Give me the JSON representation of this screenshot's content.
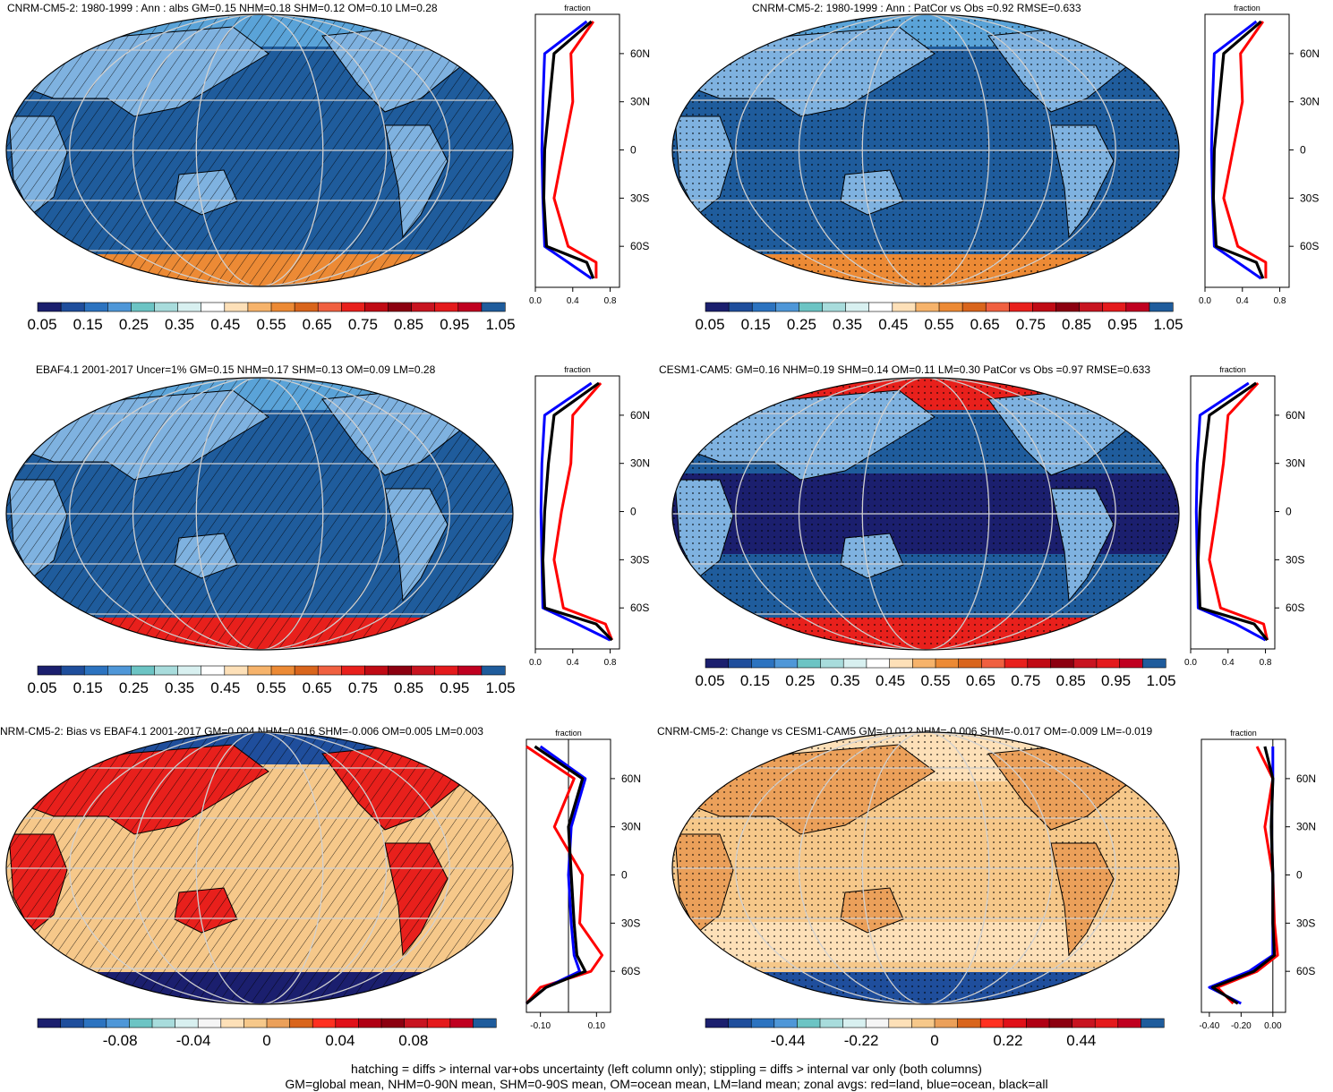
{
  "panels": [
    {
      "id": "p1",
      "title": "CNRM-CM5-2: 1980-1999 : Ann : albs GM=0.15 NHM=0.18 SHM=0.12 OM=0.10 LM=0.28",
      "map_pattern": "hatch",
      "profile_xlabel": "fraction",
      "profile_ticks": [
        "0.0",
        "0.4",
        "0.8"
      ],
      "lat_ticks": [
        "60N",
        "30N",
        "0",
        "30S",
        "60S"
      ],
      "colorbar_labels": [
        "0.05",
        "0.15",
        "0.25",
        "0.35",
        "0.45",
        "0.55",
        "0.65",
        "0.75",
        "0.85",
        "0.95",
        "1.05"
      ]
    },
    {
      "id": "p2",
      "title": "CNRM-CM5-2: 1980-1999 : Ann : PatCor vs Obs =0.92 RMSE=0.633",
      "map_pattern": "stipple",
      "profile_xlabel": "fraction",
      "profile_ticks": [
        "0.0",
        "0.4",
        "0.8"
      ],
      "lat_ticks": [
        "60N",
        "30N",
        "0",
        "30S",
        "60S"
      ],
      "colorbar_labels": [
        "0.05",
        "0.15",
        "0.25",
        "0.35",
        "0.45",
        "0.55",
        "0.65",
        "0.75",
        "0.85",
        "0.95",
        "1.05"
      ]
    },
    {
      "id": "p3",
      "title": "EBAF4.1 2001-2017 Uncer=1% GM=0.15 NHM=0.17 SHM=0.13 OM=0.09 LM=0.28",
      "map_pattern": "hatch",
      "profile_xlabel": "fraction",
      "profile_ticks": [
        "0.0",
        "0.4",
        "0.8"
      ],
      "lat_ticks": [
        "60N",
        "30N",
        "0",
        "30S",
        "60S"
      ],
      "colorbar_labels": [
        "0.05",
        "0.15",
        "0.25",
        "0.35",
        "0.45",
        "0.55",
        "0.65",
        "0.75",
        "0.85",
        "0.95",
        "1.05"
      ]
    },
    {
      "id": "p4",
      "title": "CESM1-CAM5: GM=0.16 NHM=0.19 SHM=0.14 OM=0.11 LM=0.30 PatCor vs Obs =0.97 RMSE=0.633",
      "map_pattern": "stipple",
      "profile_xlabel": "fraction",
      "profile_ticks": [
        "0.0",
        "0.4",
        "0.8"
      ],
      "lat_ticks": [
        "60N",
        "30N",
        "0",
        "30S",
        "60S"
      ],
      "colorbar_labels": [
        "0.05",
        "0.15",
        "0.25",
        "0.35",
        "0.45",
        "0.55",
        "0.65",
        "0.75",
        "0.85",
        "0.95",
        "1.05"
      ]
    },
    {
      "id": "p5",
      "title": "NRM-CM5-2: Bias vs EBAF4.1 2001-2017 GM=0.004 NHM=0.016 SHM=-0.006 OM=0.005 LM=0.003",
      "map_pattern": "hatch",
      "profile_xlabel": "fraction",
      "profile_ticks": [
        "-0.10",
        "0.10"
      ],
      "lat_ticks": [
        "60N",
        "30N",
        "0",
        "30S",
        "60S"
      ],
      "colorbar_labels": [
        "-0.08",
        "-0.04",
        "0",
        "0.04",
        "0.08"
      ]
    },
    {
      "id": "p6",
      "title": "CNRM-CM5-2: Change vs CESM1-CAM5 GM=-0.012 NHM=-0.006 SHM=-0.017 OM=-0.009 LM=-0.019",
      "map_pattern": "stipple",
      "profile_xlabel": "fraction",
      "profile_ticks": [
        "-0.40",
        "-0.20",
        "0.00"
      ],
      "lat_ticks": [
        "60N",
        "30N",
        "0",
        "30S",
        "60S"
      ],
      "colorbar_labels": [
        "-0.44",
        "-0.22",
        "0",
        "0.22",
        "0.44"
      ]
    }
  ],
  "colors": {
    "seq": [
      "#1b1f6e",
      "#1f4e9c",
      "#2c73c0",
      "#4f97d8",
      "#6cc4c4",
      "#a8dcdc",
      "#d8f0f0",
      "#ffffff",
      "#fde0b8",
      "#f6b36b",
      "#ec8a35",
      "#d9651c",
      "#f06040",
      "#e8201c",
      "#c00a14",
      "#8c0010",
      "#c81420",
      "#e41a1c",
      "#c00020",
      "#1f5c9c"
    ],
    "div": [
      "#1b1f6e",
      "#1f4e9c",
      "#2c73c0",
      "#4f97d8",
      "#6cc4c4",
      "#a8dcdc",
      "#d8f0f0",
      "#f5f5f5",
      "#fde0b8",
      "#f6c88a",
      "#eba05a",
      "#d9651c",
      "#ff3020",
      "#e01018",
      "#b00014",
      "#8c0010",
      "#c81420",
      "#e41a1c",
      "#c00020",
      "#1f5c9c"
    ],
    "ocean": "#1f5c9c",
    "land": "#7fb2e0",
    "red_curve": "#ff0000",
    "blue_curve": "#0000ff",
    "black_curve": "#000000"
  },
  "chart_data": [
    {
      "type": "heatmap",
      "title": "CNRM-CM5-2: 1980-1999 : Ann : albs GM=0.15 NHM=0.18 SHM=0.12 OM=0.10 LM=0.28",
      "colorbar_ticks": [
        0.05,
        0.15,
        0.25,
        0.35,
        0.45,
        0.55,
        0.65,
        0.75,
        0.85,
        0.95,
        1.05
      ],
      "zonal_profile": {
        "xlabel": "fraction",
        "xlim": [
          0.0,
          0.9
        ],
        "lat": [
          80,
          60,
          30,
          0,
          -30,
          -60,
          -70,
          -80
        ],
        "series": [
          {
            "name": "land",
            "color": "red",
            "values": [
              0.62,
              0.38,
              0.4,
              0.3,
              0.2,
              0.35,
              0.65,
              0.65
            ]
          },
          {
            "name": "ocean",
            "color": "blue",
            "values": [
              0.55,
              0.1,
              0.08,
              0.07,
              0.08,
              0.1,
              0.35,
              0.6
            ]
          },
          {
            "name": "all",
            "color": "black",
            "values": [
              0.6,
              0.2,
              0.15,
              0.1,
              0.09,
              0.12,
              0.55,
              0.62
            ]
          }
        ]
      }
    },
    {
      "type": "heatmap",
      "title": "CNRM-CM5-2: 1980-1999 : Ann : PatCor vs Obs =0.92 RMSE=0.633",
      "colorbar_ticks": [
        0.05,
        0.15,
        0.25,
        0.35,
        0.45,
        0.55,
        0.65,
        0.75,
        0.85,
        0.95,
        1.05
      ],
      "zonal_profile": {
        "xlabel": "fraction",
        "xlim": [
          0.0,
          0.9
        ],
        "lat": [
          80,
          60,
          30,
          0,
          -30,
          -60,
          -70,
          -80
        ],
        "series": [
          {
            "name": "land",
            "color": "red",
            "values": [
              0.62,
              0.38,
              0.4,
              0.3,
              0.2,
              0.35,
              0.65,
              0.65
            ]
          },
          {
            "name": "ocean",
            "color": "blue",
            "values": [
              0.55,
              0.1,
              0.08,
              0.07,
              0.08,
              0.1,
              0.35,
              0.6
            ]
          },
          {
            "name": "all",
            "color": "black",
            "values": [
              0.6,
              0.2,
              0.15,
              0.1,
              0.09,
              0.12,
              0.55,
              0.62
            ]
          }
        ]
      }
    },
    {
      "type": "heatmap",
      "title": "EBAF4.1 2001-2017 Uncer=1% GM=0.15 NHM=0.17 SHM=0.13 OM=0.09 LM=0.28",
      "colorbar_ticks": [
        0.05,
        0.15,
        0.25,
        0.35,
        0.45,
        0.55,
        0.65,
        0.75,
        0.85,
        0.95,
        1.05
      ],
      "zonal_profile": {
        "xlabel": "fraction",
        "xlim": [
          0.0,
          0.9
        ],
        "lat": [
          80,
          60,
          30,
          0,
          -30,
          -60,
          -70,
          -80
        ],
        "series": [
          {
            "name": "land",
            "color": "red",
            "values": [
              0.7,
              0.4,
              0.38,
              0.28,
              0.2,
              0.3,
              0.75,
              0.82
            ]
          },
          {
            "name": "ocean",
            "color": "blue",
            "values": [
              0.6,
              0.1,
              0.07,
              0.06,
              0.07,
              0.08,
              0.45,
              0.8
            ]
          },
          {
            "name": "all",
            "color": "black",
            "values": [
              0.68,
              0.2,
              0.14,
              0.1,
              0.08,
              0.1,
              0.65,
              0.82
            ]
          }
        ]
      }
    },
    {
      "type": "heatmap",
      "title": "CESM1-CAM5: GM=0.16 NHM=0.19 SHM=0.14 OM=0.11 LM=0.30 PatCor vs Obs =0.97 RMSE=0.633",
      "colorbar_ticks": [
        0.05,
        0.15,
        0.25,
        0.35,
        0.45,
        0.55,
        0.65,
        0.75,
        0.85,
        0.95,
        1.05
      ],
      "zonal_profile": {
        "xlabel": "fraction",
        "xlim": [
          0.0,
          0.9
        ],
        "lat": [
          80,
          60,
          30,
          0,
          -30,
          -60,
          -70,
          -80
        ],
        "series": [
          {
            "name": "land",
            "color": "red",
            "values": [
              0.72,
              0.4,
              0.35,
              0.28,
              0.2,
              0.32,
              0.78,
              0.82
            ]
          },
          {
            "name": "ocean",
            "color": "blue",
            "values": [
              0.62,
              0.1,
              0.07,
              0.06,
              0.07,
              0.08,
              0.48,
              0.8
            ]
          },
          {
            "name": "all",
            "color": "black",
            "values": [
              0.7,
              0.2,
              0.14,
              0.1,
              0.08,
              0.1,
              0.68,
              0.82
            ]
          }
        ]
      }
    },
    {
      "type": "heatmap",
      "title": "NRM-CM5-2: Bias vs EBAF4.1 2001-2017 GM=0.004 NHM=0.016 SHM=-0.006 OM=0.005 LM=0.003",
      "colorbar_ticks": [
        -0.08,
        -0.04,
        0,
        0.04,
        0.08
      ],
      "zonal_profile": {
        "xlabel": "fraction",
        "xlim": [
          -0.15,
          0.15
        ],
        "lat": [
          80,
          60,
          30,
          0,
          -30,
          -50,
          -60,
          -70,
          -80
        ],
        "series": [
          {
            "name": "land",
            "color": "red",
            "values": [
              -0.15,
              0.02,
              -0.05,
              0.05,
              0.04,
              0.12,
              0.08,
              -0.1,
              -0.15
            ]
          },
          {
            "name": "ocean",
            "color": "blue",
            "values": [
              -0.1,
              0.06,
              0.01,
              0.0,
              0.01,
              0.02,
              0.04,
              -0.08,
              -0.15
            ]
          },
          {
            "name": "all",
            "color": "black",
            "values": [
              -0.12,
              0.05,
              0.0,
              0.01,
              0.02,
              0.03,
              0.06,
              -0.08,
              -0.15
            ]
          }
        ]
      }
    },
    {
      "type": "heatmap",
      "title": "CNRM-CM5-2: Change vs CESM1-CAM5 GM=-0.012 NHM=-0.006 SHM=-0.017 OM=-0.009 LM=-0.019",
      "colorbar_ticks": [
        -0.44,
        -0.22,
        0,
        0.22,
        0.44
      ],
      "zonal_profile": {
        "xlabel": "fraction",
        "xlim": [
          -0.45,
          0.08
        ],
        "lat": [
          80,
          60,
          30,
          0,
          -30,
          -50,
          -60,
          -70,
          -80
        ],
        "series": [
          {
            "name": "land",
            "color": "red",
            "values": [
              -0.1,
              0.0,
              -0.05,
              0.0,
              0.01,
              0.03,
              -0.1,
              -0.35,
              -0.25
            ]
          },
          {
            "name": "ocean",
            "color": "blue",
            "values": [
              0.0,
              0.0,
              -0.01,
              0.0,
              0.0,
              0.0,
              -0.15,
              -0.4,
              -0.2
            ]
          },
          {
            "name": "all",
            "color": "black",
            "values": [
              -0.05,
              0.0,
              -0.01,
              0.0,
              0.0,
              0.01,
              -0.12,
              -0.38,
              -0.22
            ]
          }
        ]
      }
    }
  ],
  "footer": {
    "line1": "hatching = diffs > internal var+obs uncertainty (left column only); stippling = diffs > internal var only (both columns)",
    "line2": "GM=global mean, NHM=0-90N mean, SHM=0-90S mean, OM=ocean mean, LM=land mean; zonal avgs: red=land, blue=ocean, black=all"
  }
}
